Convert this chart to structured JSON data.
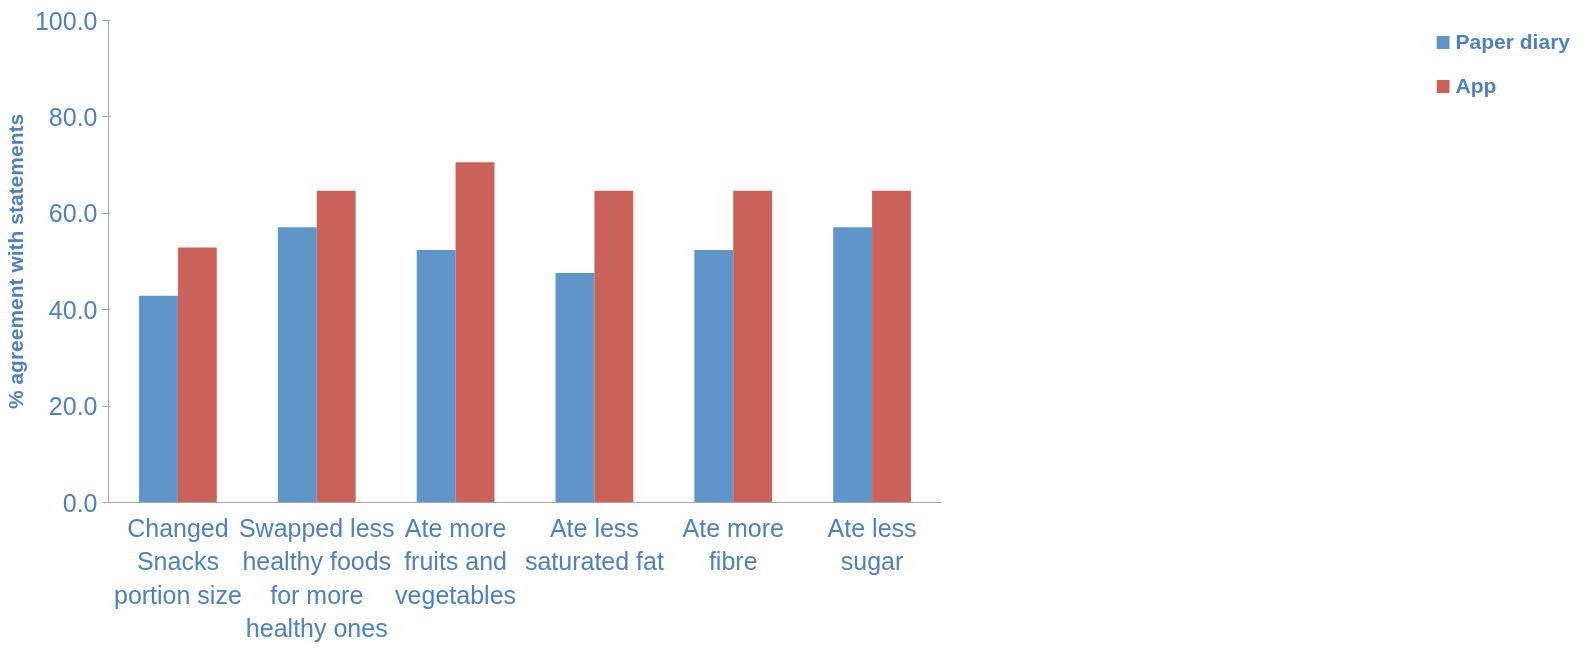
{
  "chart_data": {
    "type": "bar",
    "ylabel": "% agreement with statements",
    "categories": [
      "Changed Snacks portion size",
      "Swapped less healthy foods for more healthy ones",
      "Ate more fruits and vegetables",
      "Ate less saturated fat",
      "Ate more fibre",
      "Ate less sugar"
    ],
    "series": [
      {
        "name": "Paper diary",
        "color": "#5f96c9",
        "values": [
          42.9,
          57.1,
          52.4,
          47.6,
          52.4,
          57.1
        ]
      },
      {
        "name": "App",
        "color": "#cb625a",
        "values": [
          52.9,
          64.7,
          70.6,
          64.7,
          64.7,
          64.7
        ]
      }
    ],
    "ylim": [
      0,
      100
    ],
    "yticks": [
      {
        "value": 0,
        "label": "0.0"
      },
      {
        "value": 20,
        "label": "20.0"
      },
      {
        "value": 40,
        "label": "40.0"
      },
      {
        "value": 60,
        "label": "60.0"
      },
      {
        "value": 80,
        "label": "80.0"
      },
      {
        "value": 100,
        "label": "100.0"
      }
    ],
    "grid": false,
    "legend": "right"
  }
}
